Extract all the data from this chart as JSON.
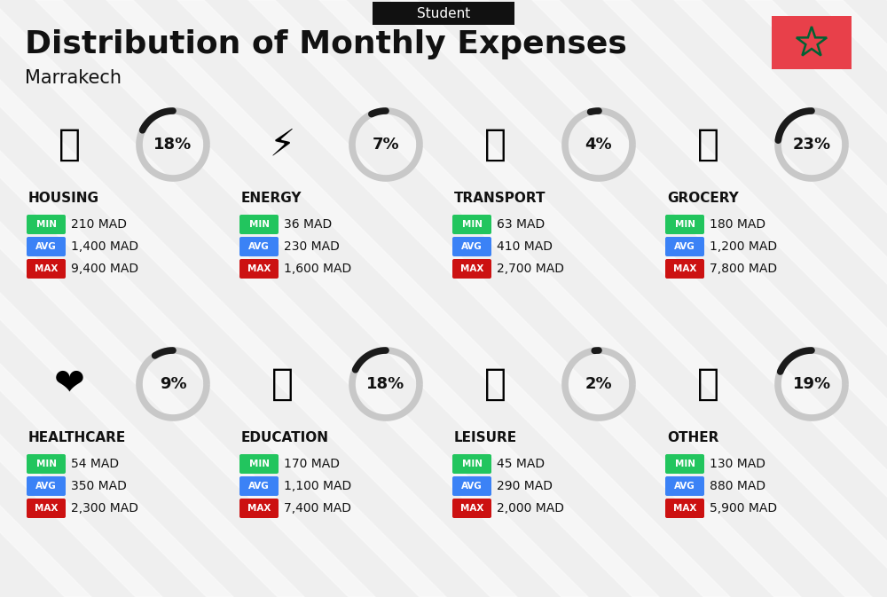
{
  "title": "Distribution of Monthly Expenses",
  "subtitle": "Student",
  "city": "Marrakech",
  "bg_color": "#efefef",
  "categories": [
    {
      "name": "HOUSING",
      "percent": 18,
      "min": "210 MAD",
      "avg": "1,400 MAD",
      "max": "9,400 MAD",
      "col": 0,
      "row": 0
    },
    {
      "name": "ENERGY",
      "percent": 7,
      "min": "36 MAD",
      "avg": "230 MAD",
      "max": "1,600 MAD",
      "col": 1,
      "row": 0
    },
    {
      "name": "TRANSPORT",
      "percent": 4,
      "min": "63 MAD",
      "avg": "410 MAD",
      "max": "2,700 MAD",
      "col": 2,
      "row": 0
    },
    {
      "name": "GROCERY",
      "percent": 23,
      "min": "180 MAD",
      "avg": "1,200 MAD",
      "max": "7,800 MAD",
      "col": 3,
      "row": 0
    },
    {
      "name": "HEALTHCARE",
      "percent": 9,
      "min": "54 MAD",
      "avg": "350 MAD",
      "max": "2,300 MAD",
      "col": 0,
      "row": 1
    },
    {
      "name": "EDUCATION",
      "percent": 18,
      "min": "170 MAD",
      "avg": "1,100 MAD",
      "max": "7,400 MAD",
      "col": 1,
      "row": 1
    },
    {
      "name": "LEISURE",
      "percent": 2,
      "min": "45 MAD",
      "avg": "290 MAD",
      "max": "2,000 MAD",
      "col": 2,
      "row": 1
    },
    {
      "name": "OTHER",
      "percent": 19,
      "min": "130 MAD",
      "avg": "880 MAD",
      "max": "5,900 MAD",
      "col": 3,
      "row": 1
    }
  ],
  "color_min": "#22c55e",
  "color_avg": "#3b82f6",
  "color_max": "#cc1111",
  "donut_filled": "#1a1a1a",
  "donut_empty": "#c8c8c8",
  "flag_bg": "#e8404a",
  "flag_star_color": "#006233",
  "stripe_color": "#e0e0e0",
  "header_bg": "#111111",
  "header_text": "#ffffff",
  "title_color": "#111111",
  "city_color": "#111111",
  "name_color": "#111111",
  "value_color": "#111111"
}
